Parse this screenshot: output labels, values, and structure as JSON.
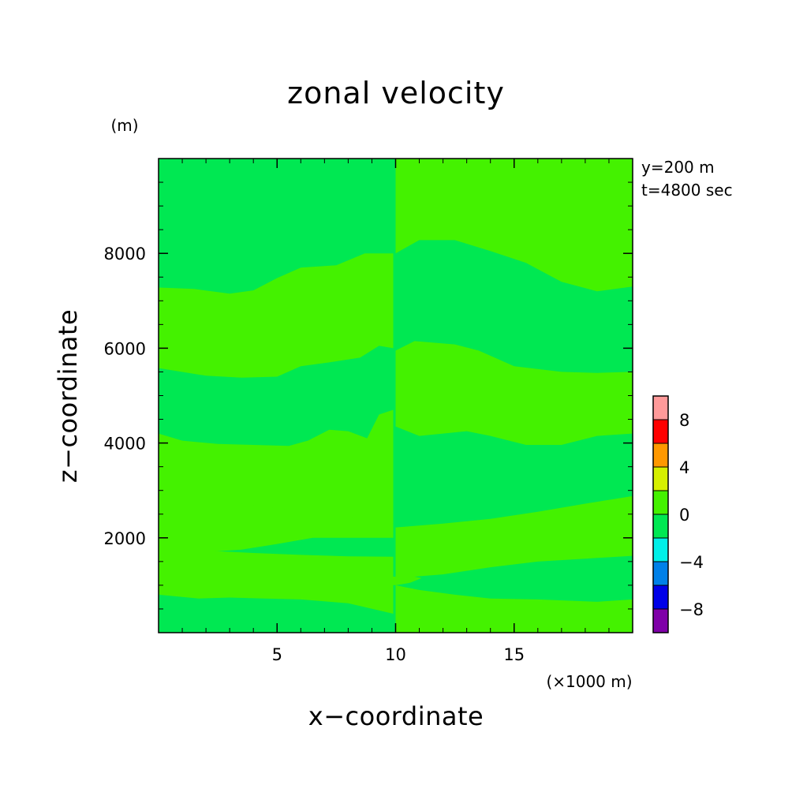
{
  "chart_data": {
    "type": "heatmap",
    "title": "zonal velocity",
    "xlabel": "x−coordinate",
    "ylabel": "z−coordinate",
    "x_unit": "(×1000 m)",
    "y_unit": "(m)",
    "annotations": [
      "y=200 m",
      "t=4800 sec"
    ],
    "xlim": [
      0,
      20
    ],
    "ylim": [
      0,
      10000
    ],
    "x_ticks": [
      5,
      10,
      15
    ],
    "x_tick_labels": [
      "5",
      "10",
      "15"
    ],
    "y_ticks": [
      2000,
      4000,
      6000,
      8000
    ],
    "y_tick_labels": [
      "2000",
      "4000",
      "6000",
      "8000"
    ],
    "legend_position": "right",
    "colorbar": {
      "boundaries": [
        -10,
        -8,
        -6,
        -4,
        -2,
        0,
        2,
        4,
        6,
        8,
        10
      ],
      "colors": [
        "#7f00a8",
        "#0000e8",
        "#0080e8",
        "#00f0e8",
        "#00e852",
        "#44f200",
        "#d6f000",
        "#ff9800",
        "#ff0000",
        "#ff9a9a"
      ],
      "tick_values": [
        -8,
        -4,
        0,
        4,
        8
      ],
      "tick_labels": [
        "−8",
        "−4",
        "0",
        "4",
        "8"
      ]
    },
    "colors": {
      "level_0_to_2": "#44f200",
      "level_minus2_to_0": "#00e852"
    },
    "field_levels": {
      "range": [
        -2,
        2
      ],
      "band_values": [
        0,
        -1
      ]
    },
    "regions": [
      {
        "level": "0 to 2",
        "color_index": 5,
        "boundary": [
          [
            0,
            7280
          ],
          [
            1.5,
            7250
          ],
          [
            3,
            7150
          ],
          [
            4,
            7220
          ],
          [
            5,
            7480
          ],
          [
            6,
            7700
          ],
          [
            7.5,
            7750
          ],
          [
            8.7,
            8000
          ],
          [
            9.9,
            8000
          ],
          [
            9.9,
            6000
          ],
          [
            9.3,
            6050
          ],
          [
            8.5,
            5800
          ],
          [
            7.2,
            5700
          ],
          [
            6,
            5620
          ],
          [
            5,
            5400
          ],
          [
            3.5,
            5380
          ],
          [
            2,
            5420
          ],
          [
            0,
            5580
          ]
        ]
      },
      {
        "level": "0 to 2",
        "color_index": 5,
        "boundary": [
          [
            0,
            4200
          ],
          [
            1,
            4050
          ],
          [
            2.5,
            3980
          ],
          [
            4,
            3960
          ],
          [
            5.5,
            3940
          ],
          [
            6.3,
            4050
          ],
          [
            7.2,
            4280
          ],
          [
            8,
            4250
          ],
          [
            8.8,
            4100
          ],
          [
            9.3,
            4600
          ],
          [
            9.9,
            4700
          ],
          [
            9.9,
            2300
          ],
          [
            8.5,
            2150
          ],
          [
            6.5,
            2000
          ],
          [
            5,
            1870
          ],
          [
            3.5,
            1750
          ],
          [
            2,
            1700
          ],
          [
            0,
            1520
          ]
        ]
      },
      {
        "level": "0 to 2",
        "color_index": 5,
        "boundary": [
          [
            0,
            2880
          ],
          [
            1.5,
            2800
          ],
          [
            3.5,
            2720
          ],
          [
            6,
            2560
          ],
          [
            8,
            2450
          ],
          [
            9.9,
            2300
          ],
          [
            9.9,
            2000
          ],
          [
            0,
            2000
          ]
        ]
      },
      {
        "level": "0 to 2",
        "color_index": 5,
        "boundary": [
          [
            0,
            1750
          ],
          [
            2,
            1730
          ],
          [
            4,
            1680
          ],
          [
            6,
            1640
          ],
          [
            8,
            1610
          ],
          [
            9.9,
            1600
          ],
          [
            9.9,
            400
          ],
          [
            8,
            620
          ],
          [
            6,
            700
          ],
          [
            4.5,
            720
          ],
          [
            3,
            740
          ],
          [
            1.7,
            720
          ],
          [
            0,
            800
          ]
        ]
      },
      {
        "level": "0 to 2",
        "color_index": 5,
        "boundary": [
          [
            10,
            10000
          ],
          [
            20,
            10000
          ],
          [
            20,
            7300
          ],
          [
            18.5,
            7200
          ],
          [
            17,
            7400
          ],
          [
            15.5,
            7800
          ],
          [
            14,
            8050
          ],
          [
            12.5,
            8280
          ],
          [
            11,
            8280
          ],
          [
            10,
            8000
          ]
        ]
      },
      {
        "level": "0 to 2",
        "color_index": 5,
        "boundary": [
          [
            10,
            5950
          ],
          [
            10.8,
            6150
          ],
          [
            12.5,
            6080
          ],
          [
            13.5,
            5950
          ],
          [
            15,
            5620
          ],
          [
            17,
            5500
          ],
          [
            18.5,
            5480
          ],
          [
            20,
            5500
          ],
          [
            20,
            4200
          ],
          [
            18.5,
            4150
          ],
          [
            17,
            3960
          ],
          [
            15.5,
            3960
          ],
          [
            14,
            4150
          ],
          [
            13,
            4250
          ],
          [
            12,
            4200
          ],
          [
            11,
            4150
          ],
          [
            10,
            4350
          ]
        ]
      },
      {
        "level": "0 to 2",
        "color_index": 5,
        "boundary": [
          [
            10,
            2220
          ],
          [
            12,
            2300
          ],
          [
            14,
            2400
          ],
          [
            16,
            2550
          ],
          [
            18,
            2720
          ],
          [
            20,
            2880
          ],
          [
            20,
            1620
          ],
          [
            18,
            1560
          ],
          [
            16,
            1500
          ],
          [
            14,
            1380
          ],
          [
            12,
            1230
          ],
          [
            10,
            1150
          ]
        ]
      },
      {
        "level": "0 to 2",
        "color_index": 5,
        "boundary": [
          [
            10,
            1000
          ],
          [
            11,
            900
          ],
          [
            12.5,
            800
          ],
          [
            14,
            720
          ],
          [
            16,
            700
          ],
          [
            18.5,
            650
          ],
          [
            20,
            700
          ],
          [
            20,
            0
          ],
          [
            10,
            0
          ]
        ]
      },
      {
        "level": "0 to 2",
        "color_index": 5,
        "boundary": [
          [
            8.9,
            1100
          ],
          [
            9.4,
            1200
          ],
          [
            10,
            1180
          ],
          [
            10.6,
            1200
          ],
          [
            11.1,
            1150
          ],
          [
            10.6,
            1050
          ],
          [
            10,
            1000
          ],
          [
            9.4,
            1020
          ]
        ]
      }
    ]
  }
}
